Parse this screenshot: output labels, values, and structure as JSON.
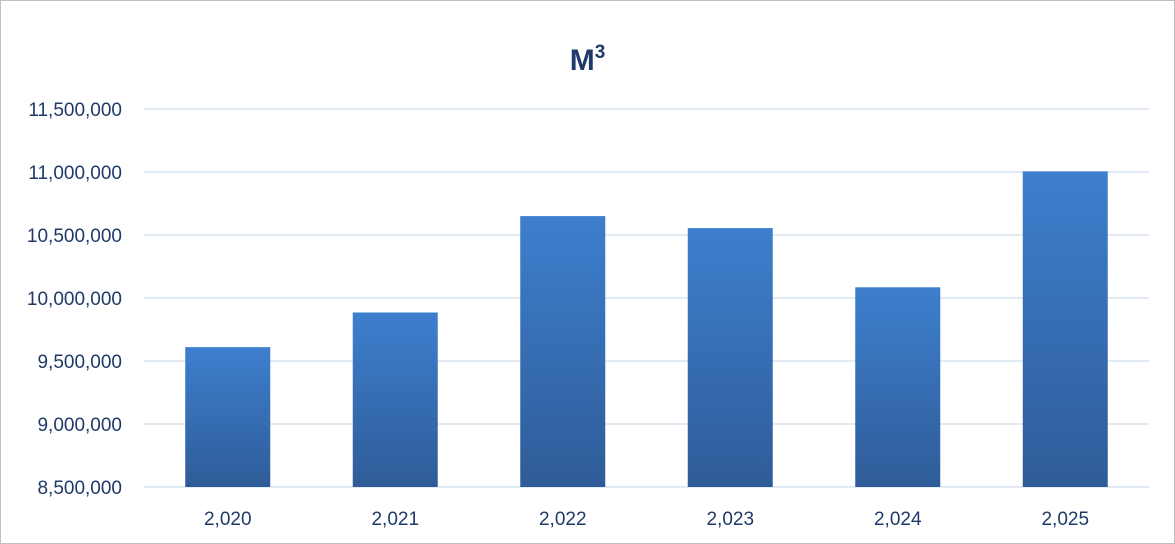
{
  "chart_data": {
    "type": "bar",
    "title": "M",
    "title_superscript": "3",
    "xlabel": "",
    "ylabel": "",
    "categories": [
      "2,020",
      "2,021",
      "2,022",
      "2,023",
      "2,024",
      "2,025"
    ],
    "values": [
      9610000,
      9885000,
      10650000,
      10555000,
      10085000,
      11005000
    ],
    "ylim": [
      8500000,
      11500000
    ],
    "yticks": [
      8500000,
      9000000,
      9500000,
      10000000,
      10500000,
      11000000,
      11500000
    ],
    "ytick_labels": [
      "8,500,000",
      "9,000,000",
      "9,500,000",
      "10,000,000",
      "10,500,000",
      "11,000,000",
      "11,500,000"
    ],
    "grid": true,
    "legend": "none",
    "colors": {
      "bar_top": "#3d7fce",
      "bar_bottom": "#2f5c98",
      "grid": "#d9e3ef",
      "text": "#1f3a68"
    }
  }
}
